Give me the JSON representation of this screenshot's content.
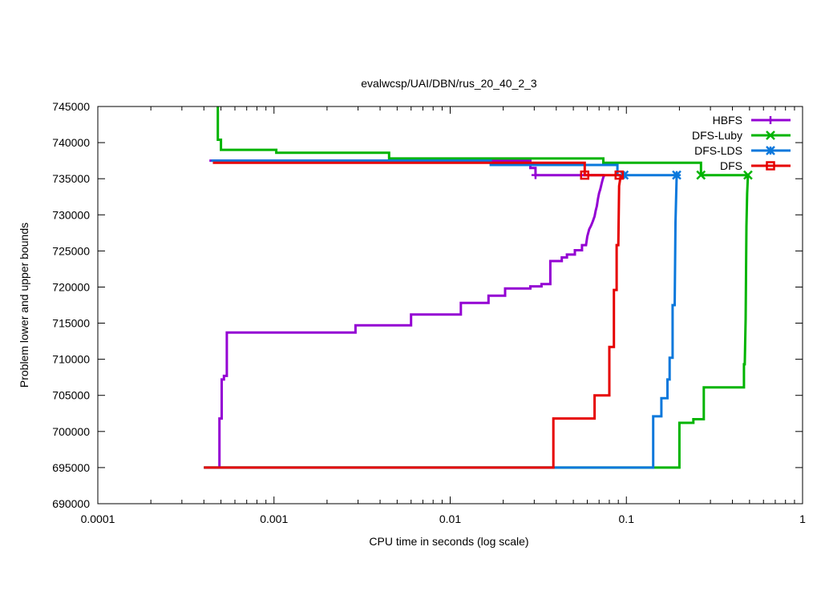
{
  "chart_data": {
    "type": "line",
    "title": "evalwcsp/UAI/DBN/rus_20_40_2_3",
    "xlabel": "CPU time in seconds (log scale)",
    "ylabel": "Problem lower and upper bounds",
    "xscale": "log",
    "xlim": [
      0.0001,
      1
    ],
    "ylim": [
      690000,
      745000
    ],
    "x_ticks": [
      0.0001,
      0.001,
      0.01,
      0.1,
      1
    ],
    "x_tick_labels": [
      "0.0001",
      "0.001",
      "0.01",
      "0.1",
      "1"
    ],
    "y_ticks": [
      690000,
      695000,
      700000,
      705000,
      710000,
      715000,
      720000,
      725000,
      730000,
      735000,
      740000,
      745000
    ],
    "y_tick_labels": [
      "690000",
      "695000",
      "700000",
      "705000",
      "710000",
      "715000",
      "720000",
      "725000",
      "730000",
      "735000",
      "740000",
      "745000"
    ],
    "grid": false,
    "legend_position": "top-right",
    "series": [
      {
        "name": "HBFS",
        "color": "#9400d3",
        "marker": "plus",
        "upper": [
          [
            0.00043,
            737500
          ],
          [
            0.0285,
            737500
          ],
          [
            0.0285,
            736500
          ],
          [
            0.0305,
            736500
          ],
          [
            0.0305,
            735500
          ],
          [
            0.075,
            735500
          ]
        ],
        "lower": [
          [
            0.00049,
            695000
          ],
          [
            0.00049,
            701800
          ],
          [
            0.000505,
            701800
          ],
          [
            0.000505,
            707200
          ],
          [
            0.00052,
            707200
          ],
          [
            0.00052,
            707700
          ],
          [
            0.00054,
            707700
          ],
          [
            0.00054,
            713700
          ],
          [
            0.0029,
            713700
          ],
          [
            0.0029,
            714700
          ],
          [
            0.006,
            714700
          ],
          [
            0.006,
            716200
          ],
          [
            0.0115,
            716200
          ],
          [
            0.0115,
            717800
          ],
          [
            0.0165,
            717800
          ],
          [
            0.0165,
            718800
          ],
          [
            0.0205,
            718800
          ],
          [
            0.0205,
            719800
          ],
          [
            0.0285,
            719800
          ],
          [
            0.0285,
            720100
          ],
          [
            0.033,
            720100
          ],
          [
            0.033,
            720400
          ],
          [
            0.037,
            720400
          ],
          [
            0.037,
            723600
          ],
          [
            0.043,
            723600
          ],
          [
            0.043,
            724100
          ],
          [
            0.046,
            724100
          ],
          [
            0.046,
            724500
          ],
          [
            0.051,
            724500
          ],
          [
            0.051,
            725100
          ],
          [
            0.056,
            725100
          ],
          [
            0.056,
            725800
          ],
          [
            0.059,
            725800
          ],
          [
            0.06,
            727000
          ],
          [
            0.0615,
            728000
          ],
          [
            0.063,
            728500
          ],
          [
            0.0645,
            729100
          ],
          [
            0.066,
            729800
          ],
          [
            0.067,
            730600
          ],
          [
            0.068,
            731200
          ],
          [
            0.069,
            732200
          ],
          [
            0.07,
            733000
          ],
          [
            0.071,
            733500
          ],
          [
            0.072,
            734100
          ],
          [
            0.073,
            734700
          ],
          [
            0.074,
            735200
          ],
          [
            0.075,
            735500
          ]
        ],
        "markers": [
          [
            0.0305,
            735500
          ]
        ]
      },
      {
        "name": "DFS-Luby",
        "color": "#00b400",
        "marker": "cross",
        "upper": [
          [
            0.00048,
            745000
          ],
          [
            0.00048,
            740400
          ],
          [
            0.0005,
            740400
          ],
          [
            0.0005,
            739000
          ],
          [
            0.00103,
            739000
          ],
          [
            0.00103,
            738600
          ],
          [
            0.0045,
            738600
          ],
          [
            0.0045,
            737800
          ],
          [
            0.074,
            737800
          ],
          [
            0.074,
            737200
          ],
          [
            0.265,
            737200
          ],
          [
            0.265,
            735500
          ],
          [
            0.49,
            735500
          ]
        ],
        "lower": [
          [
            0.0004,
            695000
          ],
          [
            0.2,
            695000
          ],
          [
            0.2,
            701200
          ],
          [
            0.24,
            701200
          ],
          [
            0.24,
            701700
          ],
          [
            0.275,
            701700
          ],
          [
            0.275,
            706100
          ],
          [
            0.465,
            706100
          ],
          [
            0.465,
            709300
          ],
          [
            0.47,
            709300
          ],
          [
            0.475,
            715600
          ],
          [
            0.48,
            728400
          ],
          [
            0.485,
            733000
          ],
          [
            0.49,
            735500
          ]
        ],
        "markers": [
          [
            0.265,
            735500
          ],
          [
            0.49,
            735500
          ]
        ]
      },
      {
        "name": "DFS-LDS",
        "color": "#0a78dc",
        "marker": "star",
        "upper": [
          [
            0.00044,
            737500
          ],
          [
            0.017,
            737500
          ],
          [
            0.017,
            736900
          ],
          [
            0.089,
            736900
          ],
          [
            0.089,
            735500
          ],
          [
            0.193,
            735500
          ]
        ],
        "lower": [
          [
            0.0004,
            695000
          ],
          [
            0.142,
            695000
          ],
          [
            0.142,
            702100
          ],
          [
            0.158,
            702100
          ],
          [
            0.158,
            704600
          ],
          [
            0.171,
            704600
          ],
          [
            0.171,
            707200
          ],
          [
            0.176,
            707200
          ],
          [
            0.176,
            710200
          ],
          [
            0.183,
            710200
          ],
          [
            0.183,
            717500
          ],
          [
            0.188,
            717500
          ],
          [
            0.19,
            728900
          ],
          [
            0.193,
            735500
          ]
        ],
        "markers": [
          [
            0.097,
            735500
          ],
          [
            0.193,
            735500
          ]
        ]
      },
      {
        "name": "DFS",
        "color": "#e60000",
        "marker": "square",
        "upper": [
          [
            0.00045,
            737200
          ],
          [
            0.058,
            737200
          ],
          [
            0.058,
            735500
          ],
          [
            0.093,
            735500
          ]
        ],
        "lower": [
          [
            0.0004,
            695000
          ],
          [
            0.0385,
            695000
          ],
          [
            0.0385,
            701800
          ],
          [
            0.066,
            701800
          ],
          [
            0.066,
            705000
          ],
          [
            0.08,
            705000
          ],
          [
            0.08,
            711700
          ],
          [
            0.085,
            711700
          ],
          [
            0.085,
            719600
          ],
          [
            0.088,
            719600
          ],
          [
            0.088,
            725800
          ],
          [
            0.09,
            725800
          ],
          [
            0.091,
            734000
          ],
          [
            0.093,
            735500
          ]
        ],
        "markers": [
          [
            0.058,
            735500
          ],
          [
            0.091,
            735500
          ]
        ]
      }
    ]
  }
}
